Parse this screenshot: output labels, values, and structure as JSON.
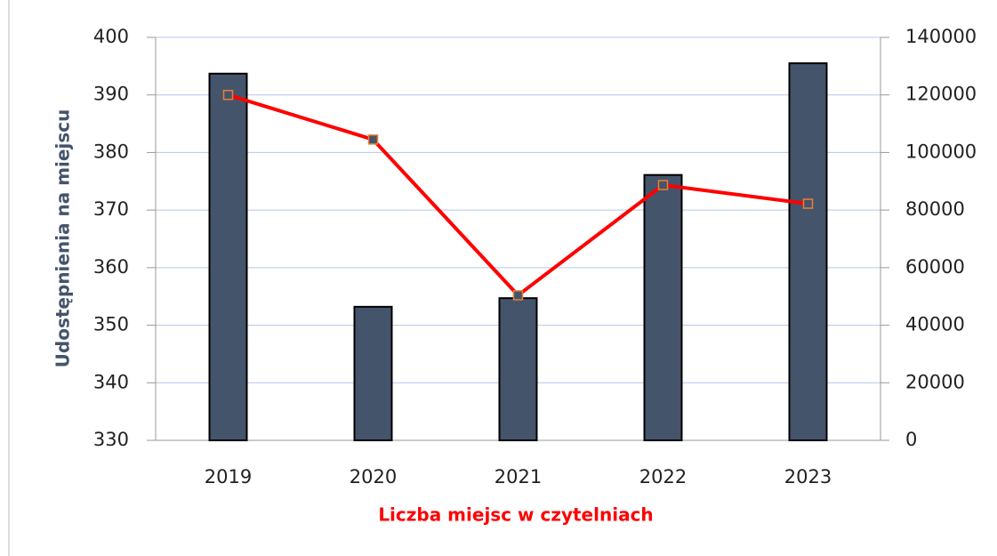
{
  "chart_data": {
    "type": "bar-line",
    "y_label": "Udostępnienia na miejscu",
    "x_label": "Liczba miejsc w czytelniach",
    "categories": [
      "2019",
      "2020",
      "2021",
      "2022",
      "2023"
    ],
    "series": [
      {
        "type": "bar",
        "color": "#44546a",
        "values": [
          393.7,
          353.2,
          354.7,
          376.1,
          395.5
        ]
      },
      {
        "type": "line",
        "color": "#ff0000",
        "axis": "y2",
        "values": [
          120000,
          104500,
          50400,
          88700,
          82200
        ]
      }
    ],
    "ylim": [
      330,
      400
    ],
    "yticks": [
      330,
      340,
      350,
      360,
      370,
      380,
      390,
      400
    ],
    "y2lim": [
      0,
      140000
    ],
    "y2ticks": [
      0,
      20000,
      40000,
      60000,
      80000,
      100000,
      120000,
      140000
    ],
    "grid": true
  }
}
